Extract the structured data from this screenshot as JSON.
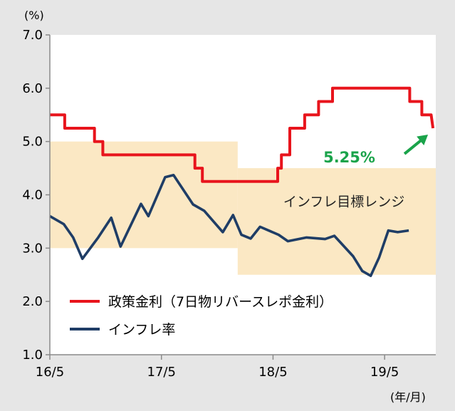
{
  "chart_data": {
    "type": "line",
    "y_unit": "(%)",
    "x_unit": "(年/月)",
    "ylim": [
      1.0,
      7.0
    ],
    "y_ticks": [
      "1.0",
      "2.0",
      "3.0",
      "4.0",
      "5.0",
      "6.0",
      "7.0"
    ],
    "x_ticks": [
      {
        "label": "16/5",
        "t": 0
      },
      {
        "label": "17/5",
        "t": 12
      },
      {
        "label": "18/5",
        "t": 24
      },
      {
        "label": "19/5",
        "t": 36
      }
    ],
    "xlim": [
      0,
      41.5
    ],
    "grid": false,
    "legend_position": "bottom-left",
    "colors": {
      "policy_rate": "#e8141c",
      "inflation": "#1f3d66",
      "target_band": "#fbe8c4",
      "annotation": "#1aa34a",
      "plot_bg": "#ffffff",
      "page_bg": "#e6e6e6"
    },
    "series": [
      {
        "name": "政策金利（7日物リバースレポ金利）",
        "key": "policy_rate",
        "step": true,
        "points": [
          [
            0,
            5.5
          ],
          [
            1.6,
            5.5
          ],
          [
            1.6,
            5.25
          ],
          [
            4.8,
            5.25
          ],
          [
            4.8,
            5.0
          ],
          [
            5.7,
            5.0
          ],
          [
            5.7,
            4.75
          ],
          [
            15.6,
            4.75
          ],
          [
            15.6,
            4.5
          ],
          [
            16.4,
            4.5
          ],
          [
            16.4,
            4.25
          ],
          [
            24.5,
            4.25
          ],
          [
            24.5,
            4.5
          ],
          [
            24.9,
            4.5
          ],
          [
            24.9,
            4.75
          ],
          [
            25.8,
            4.75
          ],
          [
            25.8,
            5.25
          ],
          [
            27.4,
            5.25
          ],
          [
            27.4,
            5.5
          ],
          [
            28.9,
            5.5
          ],
          [
            28.9,
            5.75
          ],
          [
            30.4,
            5.75
          ],
          [
            30.4,
            6.0
          ],
          [
            38.7,
            6.0
          ],
          [
            38.7,
            5.75
          ],
          [
            40.0,
            5.75
          ],
          [
            40.0,
            5.5
          ],
          [
            41.0,
            5.5
          ],
          [
            41.2,
            5.25
          ]
        ]
      },
      {
        "name": "インフレ率",
        "key": "inflation",
        "step": false,
        "points": [
          [
            0,
            3.6
          ],
          [
            1.5,
            3.45
          ],
          [
            2.5,
            3.2
          ],
          [
            3.5,
            2.8
          ],
          [
            5.2,
            3.2
          ],
          [
            6.6,
            3.57
          ],
          [
            7.6,
            3.03
          ],
          [
            9.8,
            3.83
          ],
          [
            10.6,
            3.6
          ],
          [
            12.4,
            4.33
          ],
          [
            13.3,
            4.37
          ],
          [
            15.4,
            3.82
          ],
          [
            16.6,
            3.7
          ],
          [
            18.6,
            3.3
          ],
          [
            19.7,
            3.62
          ],
          [
            20.6,
            3.25
          ],
          [
            21.6,
            3.18
          ],
          [
            22.6,
            3.4
          ],
          [
            24.6,
            3.25
          ],
          [
            25.6,
            3.13
          ],
          [
            27.6,
            3.2
          ],
          [
            29.6,
            3.17
          ],
          [
            30.6,
            3.23
          ],
          [
            32.6,
            2.85
          ],
          [
            33.6,
            2.57
          ],
          [
            34.5,
            2.48
          ],
          [
            35.4,
            2.82
          ],
          [
            36.4,
            3.33
          ],
          [
            37.4,
            3.3
          ],
          [
            38.6,
            3.33
          ]
        ]
      }
    ],
    "target_bands": [
      {
        "label": "",
        "x_from": 0,
        "x_to": 20.2,
        "y_from": 3.0,
        "y_to": 5.0
      },
      {
        "label": "インフレ目標レンジ",
        "x_from": 20.2,
        "x_to": 41.5,
        "y_from": 2.5,
        "y_to": 4.5
      }
    ],
    "annotations": [
      {
        "text": "5.25%",
        "arrow_to": [
          41.2,
          5.25
        ]
      }
    ]
  }
}
